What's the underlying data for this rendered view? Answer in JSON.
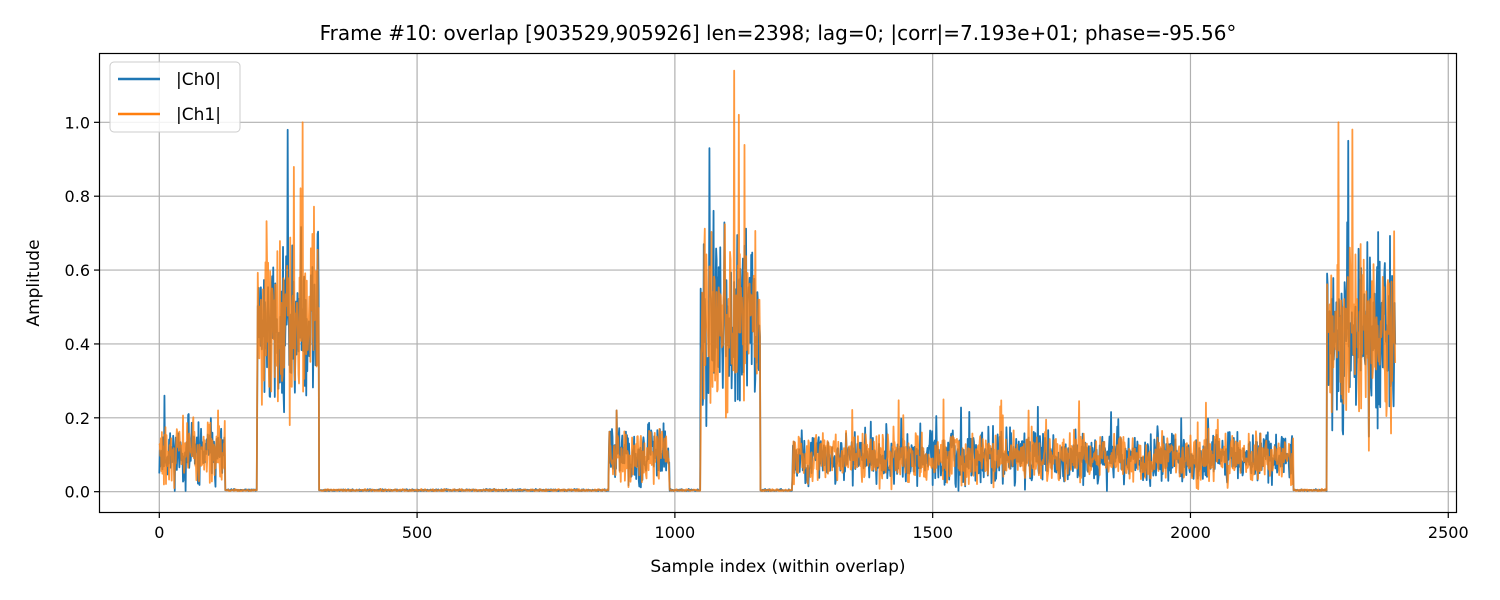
{
  "chart_data": {
    "type": "line",
    "title": "Frame #10: overlap [903529,905926]  len=2398; lag=0; |corr|=7.193e+01; phase=-95.56°",
    "xlabel": "Sample index (within overlap)",
    "ylabel": "Amplitude",
    "xlim": [
      -115,
      2515
    ],
    "ylim": [
      -0.055,
      1.185
    ],
    "xticks": [
      0,
      500,
      1000,
      1500,
      2000,
      2500
    ],
    "xtick_labels": [
      "0",
      "500",
      "1000",
      "1500",
      "2000",
      "2500"
    ],
    "yticks": [
      0.0,
      0.2,
      0.4,
      0.6,
      0.8,
      1.0
    ],
    "ytick_labels": [
      "0.0",
      "0.2",
      "0.4",
      "0.6",
      "0.8",
      "1.0"
    ],
    "grid": true,
    "legend_position": "top-left",
    "length": 2398,
    "segments": [
      {
        "start": 0,
        "end": 128,
        "level": 0.1,
        "spread": 0.06,
        "peak_ch0": 0.26,
        "peak_ch1": 0.22
      },
      {
        "start": 128,
        "end": 190,
        "level": 0.004,
        "spread": 0.002
      },
      {
        "start": 190,
        "end": 310,
        "level": 0.45,
        "spread": 0.17,
        "peak_ch0": 0.98,
        "peak_ch1": 1.0
      },
      {
        "start": 310,
        "end": 872,
        "level": 0.004,
        "spread": 0.002
      },
      {
        "start": 872,
        "end": 990,
        "level": 0.1,
        "spread": 0.05,
        "peak_ch0": 0.22,
        "peak_ch1": 0.22
      },
      {
        "start": 990,
        "end": 1050,
        "level": 0.004,
        "spread": 0.002
      },
      {
        "start": 1050,
        "end": 1166,
        "level": 0.45,
        "spread": 0.17,
        "peak_ch0": 0.93,
        "peak_ch1": 1.14
      },
      {
        "start": 1166,
        "end": 1228,
        "level": 0.004,
        "spread": 0.002
      },
      {
        "start": 1228,
        "end": 2200,
        "level": 0.09,
        "spread": 0.05,
        "peak_ch0": 0.23,
        "peak_ch1": 0.25
      },
      {
        "start": 2200,
        "end": 2265,
        "level": 0.004,
        "spread": 0.002
      },
      {
        "start": 2265,
        "end": 2398,
        "level": 0.42,
        "spread": 0.17,
        "peak_ch0": 0.95,
        "peak_ch1": 1.0
      }
    ],
    "series": [
      {
        "name": "|Ch0|",
        "color": "#1f77b4"
      },
      {
        "name": "|Ch1|",
        "color": "#ff7f0e"
      }
    ]
  }
}
